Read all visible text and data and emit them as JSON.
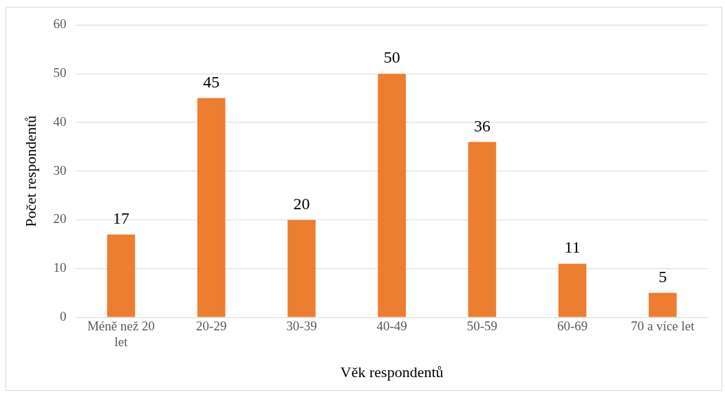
{
  "chart_data": {
    "type": "bar",
    "xlabel": "Věk respondentů",
    "ylabel": "Počet respondentů",
    "categories": [
      "Méně než 20 let",
      "20-29",
      "30-39",
      "40-49",
      "50-59",
      "60-69",
      "70 a více let"
    ],
    "values": [
      17,
      45,
      20,
      50,
      36,
      11,
      5
    ],
    "color": "#ed7d31",
    "ylim": [
      0,
      60
    ],
    "yticks": [
      0,
      10,
      20,
      30,
      40,
      50,
      60
    ],
    "grid": "y",
    "data_labels": true
  }
}
